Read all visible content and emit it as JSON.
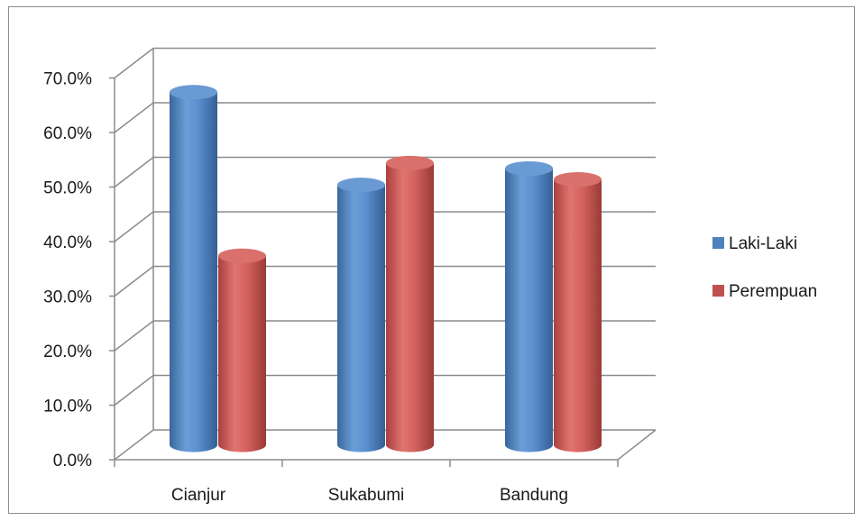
{
  "chart_data": {
    "type": "bar",
    "style": "3d-cylinder",
    "categories": [
      "Cianjur",
      "Sukabumi",
      "Bandung"
    ],
    "series": [
      {
        "name": "Laki-Laki",
        "values": [
          65.0,
          48.0,
          51.0
        ],
        "color": "#4f81bd"
      },
      {
        "name": "Perempuan",
        "values": [
          35.0,
          52.0,
          49.0
        ],
        "color": "#c0504d"
      }
    ],
    "yticks": [
      "0.0%",
      "10.0%",
      "20.0%",
      "30.0%",
      "40.0%",
      "50.0%",
      "60.0%",
      "70.0%"
    ],
    "ylim": [
      0,
      70
    ],
    "grid": true,
    "legend": "right"
  }
}
